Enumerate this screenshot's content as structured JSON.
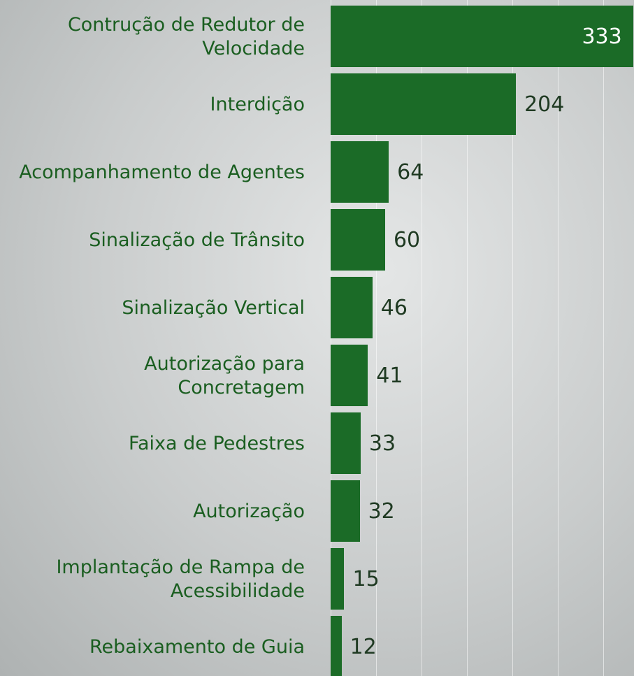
{
  "chart_data": {
    "type": "barh",
    "categories": [
      "Contrução de Redutor de Velocidade",
      "Interdição",
      "Acompanhamento de Agentes",
      "Sinalização de Trânsito",
      "Sinalização Vertical",
      "Autorização para Concretagem",
      "Faixa de Pedestres",
      "Autorização",
      "Implantação de Rampa de Acessibilidade",
      "Rebaixamento de Guia"
    ],
    "values": [
      333,
      204,
      64,
      60,
      46,
      41,
      33,
      32,
      15,
      12
    ],
    "color": "#1b6b27",
    "xlim": [
      0,
      334
    ],
    "xticks": [
      0,
      50,
      100,
      150,
      200,
      250,
      300
    ],
    "grid": true
  }
}
